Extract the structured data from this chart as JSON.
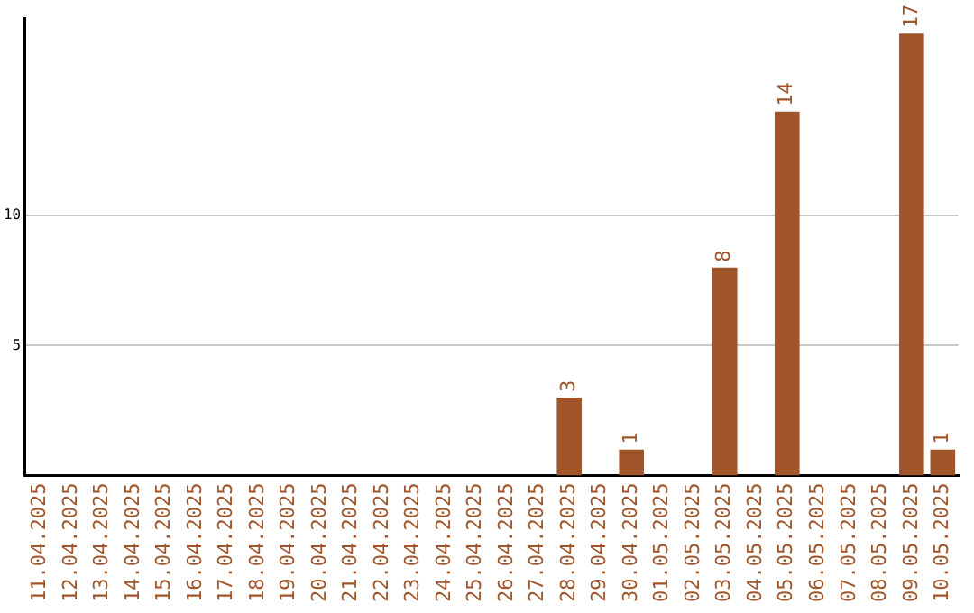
{
  "chart_data": {
    "type": "bar",
    "categories": [
      "11.04.2025",
      "12.04.2025",
      "13.04.2025",
      "14.04.2025",
      "15.04.2025",
      "16.04.2025",
      "17.04.2025",
      "18.04.2025",
      "19.04.2025",
      "20.04.2025",
      "21.04.2025",
      "22.04.2025",
      "23.04.2025",
      "24.04.2025",
      "25.04.2025",
      "26.04.2025",
      "27.04.2025",
      "28.04.2025",
      "29.04.2025",
      "30.04.2025",
      "01.05.2025",
      "02.05.2025",
      "03.05.2025",
      "04.05.2025",
      "05.05.2025",
      "06.05.2025",
      "07.05.2025",
      "08.05.2025",
      "09.05.2025",
      "10.05.2025"
    ],
    "values": [
      0,
      0,
      0,
      0,
      0,
      0,
      0,
      0,
      0,
      0,
      0,
      0,
      0,
      0,
      0,
      0,
      0,
      3,
      0,
      1,
      0,
      0,
      8,
      0,
      14,
      0,
      0,
      0,
      17,
      1
    ],
    "value_labels": [
      null,
      null,
      null,
      null,
      null,
      null,
      null,
      null,
      null,
      null,
      null,
      null,
      null,
      null,
      null,
      null,
      null,
      "3",
      null,
      "1",
      null,
      null,
      "8",
      null,
      "14",
      null,
      null,
      null,
      "17",
      "1"
    ],
    "color": "#a0562a",
    "ylim": [
      0,
      17.6
    ],
    "yticks": [
      5,
      10
    ],
    "grid": "y",
    "legend": false
  }
}
